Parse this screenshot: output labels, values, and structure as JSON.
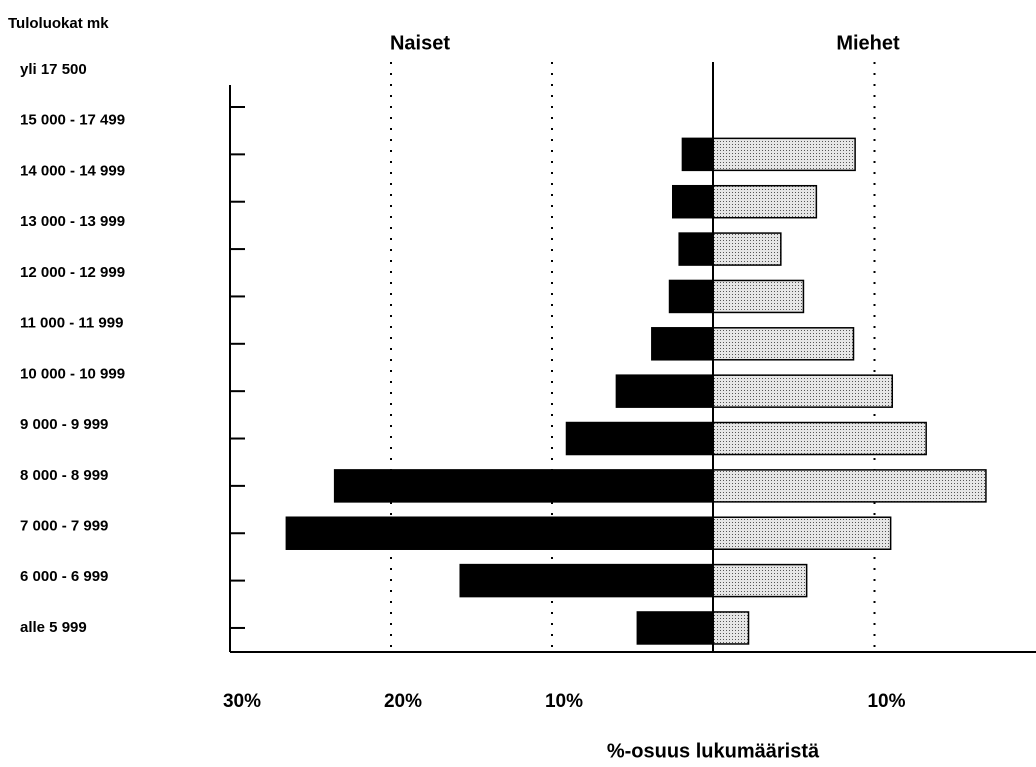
{
  "chart_data": {
    "type": "pyramid",
    "y_axis_title": "Tuloluokat mk",
    "x_axis_title": "%-osuus lukumääristä",
    "categories": [
      "yli 17 500",
      "15 000 - 17 499",
      "14 000 - 14 999",
      "13 000 - 13 999",
      "12 000 - 12 999",
      "11 000 - 11 999",
      "10 000 - 10 999",
      "9 000 - 9 999",
      "8 000 - 8 999",
      "7 000 - 7 999",
      "6 000 - 6 999",
      "alle 5 999"
    ],
    "series": [
      {
        "name": "Naiset",
        "side": "left",
        "color": "#000000",
        "values": [
          null,
          1.9,
          2.5,
          2.1,
          2.7,
          3.8,
          6.0,
          9.1,
          23.5,
          26.5,
          15.7,
          4.7
        ]
      },
      {
        "name": "Miehet",
        "side": "right",
        "color": "#c4c4c4",
        "values": [
          null,
          8.8,
          6.4,
          4.2,
          5.6,
          8.7,
          11.1,
          13.2,
          16.9,
          11.0,
          5.8,
          2.2
        ]
      }
    ],
    "left_xlim": [
      30,
      0
    ],
    "right_xlim": [
      0,
      20
    ],
    "left_xticks": [
      {
        "value": 30,
        "label": "30%"
      },
      {
        "value": 20,
        "label": "20%"
      },
      {
        "value": 10,
        "label": "10%"
      }
    ],
    "right_xticks": [
      {
        "value": 10,
        "label": "10%"
      }
    ],
    "grid": true
  }
}
